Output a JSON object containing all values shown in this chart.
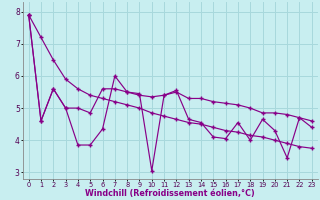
{
  "xlabel": "Windchill (Refroidissement éolien,°C)",
  "bg_color": "#c8eef0",
  "line_color": "#880088",
  "grid_color": "#a8d8dc",
  "x": [
    0,
    1,
    2,
    3,
    4,
    5,
    6,
    7,
    8,
    9,
    10,
    11,
    12,
    13,
    14,
    15,
    16,
    17,
    18,
    19,
    20,
    21,
    22,
    23
  ],
  "line_straight": [
    7.9,
    7.2,
    6.5,
    5.9,
    5.6,
    5.4,
    5.3,
    5.2,
    5.1,
    5.0,
    4.85,
    4.75,
    4.65,
    4.55,
    4.5,
    4.4,
    4.3,
    4.25,
    4.15,
    4.1,
    4.0,
    3.9,
    3.8,
    3.75
  ],
  "line_curved": [
    7.9,
    4.6,
    5.6,
    5.0,
    5.0,
    4.85,
    5.6,
    5.6,
    5.5,
    5.4,
    5.35,
    5.4,
    5.5,
    5.3,
    5.3,
    5.2,
    5.15,
    5.1,
    5.0,
    4.85,
    4.85,
    4.8,
    4.7,
    4.6
  ],
  "line_noisy": [
    7.9,
    4.6,
    5.6,
    5.0,
    3.85,
    3.85,
    4.35,
    6.0,
    5.5,
    5.45,
    3.05,
    5.4,
    5.55,
    4.65,
    4.55,
    4.1,
    4.05,
    4.55,
    4.0,
    4.65,
    4.3,
    3.45,
    4.7,
    4.4
  ],
  "ylim": [
    2.8,
    8.3
  ],
  "yticks": [
    3,
    4,
    5,
    6,
    7,
    8
  ],
  "xlim": [
    -0.5,
    23.5
  ]
}
